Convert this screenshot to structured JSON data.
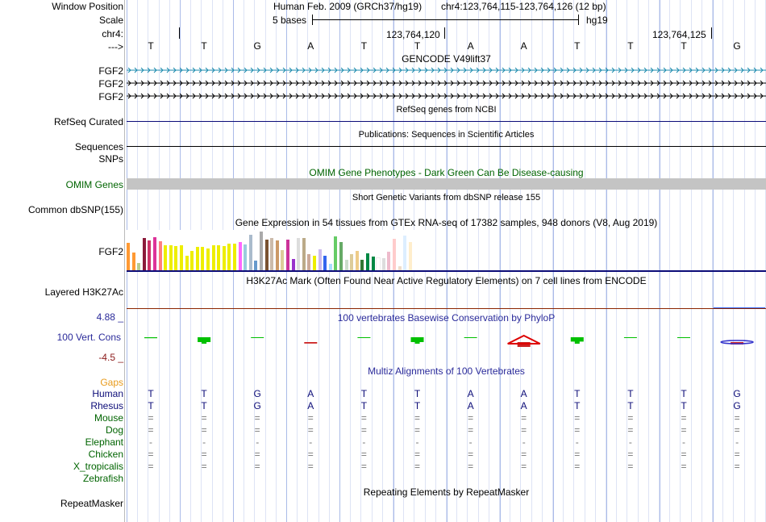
{
  "header": {
    "window_position_label": "Window Position",
    "scale_label": "Scale",
    "chrom_label": "chr4:",
    "arrow_label": "--->",
    "assembly_text": "Human Feb. 2009 (GRCh37/hg19)",
    "position_text": "chr4:123,764,115-123,764,126 (12 bp)",
    "scale_text": "5 bases",
    "db_text": "hg19",
    "coord1": "123,764,120",
    "coord2": "123,764,125"
  },
  "bases": [
    "T",
    "T",
    "G",
    "A",
    "T",
    "T",
    "A",
    "A",
    "T",
    "T",
    "T",
    "G"
  ],
  "tracks": {
    "gencode": {
      "title": "GENCODE V49lift37",
      "genes": [
        "FGF2",
        "FGF2",
        "FGF2"
      ],
      "colors": [
        "#1a8aad",
        "#000000",
        "#000000"
      ]
    },
    "refseq": {
      "title": "RefSeq genes from NCBI",
      "label": "RefSeq Curated",
      "color": "#0c0c78"
    },
    "publications": {
      "title": "Publications: Sequences in Scientific Articles",
      "label1": "Sequences",
      "label2": "SNPs"
    },
    "omim": {
      "title": "OMIM Gene Phenotypes - Dark Green Can Be Disease-causing",
      "label": "OMIM Genes",
      "color": "#006400"
    },
    "dbsnp": {
      "title": "Short Genetic Variants from dbSNP release 155",
      "label": "Common dbSNP(155)"
    },
    "gtex": {
      "title": "Gene Expression in 54 tissues from GTEx RNA-seq of 17382 samples, 948 donors (V8, Aug 2019)",
      "label": "FGF2",
      "values": [
        34,
        22,
        9,
        40,
        37,
        41,
        36,
        31,
        31,
        30,
        31,
        18,
        24,
        29,
        29,
        27,
        31,
        31,
        30,
        33,
        33,
        35,
        32,
        44,
        12,
        48,
        38,
        40,
        37,
        25,
        38,
        14,
        40,
        40,
        20,
        18,
        26,
        18,
        8,
        42,
        35,
        13,
        20,
        24,
        13,
        21,
        17,
        15,
        15,
        23,
        39,
        5,
        43,
        35
      ],
      "colors": [
        "#ff9933",
        "#ff9933",
        "#b9cc8f",
        "#8b1a3a",
        "#cc3366",
        "#dd3399",
        "#ff8080",
        "#eeee00",
        "#eeee00",
        "#eeee00",
        "#eeee00",
        "#eeee00",
        "#eeee00",
        "#eeee00",
        "#eeee00",
        "#eeee00",
        "#eeee00",
        "#eeee00",
        "#eeee00",
        "#eeee00",
        "#eeee00",
        "#ff66ff",
        "#99ccdd",
        "#aabbcc",
        "#6699cc",
        "#aaaaaa",
        "#7a5230",
        "#ccbbaa",
        "#cc9966",
        "#ddcc99",
        "#cc3399",
        "#9933cc",
        "#dddddd",
        "#bbaa88",
        "#ccaa99",
        "#eeee00",
        "#ccbbee",
        "#3366ee",
        "#aaddff",
        "#66cc66",
        "#66aa66",
        "#ccddcc",
        "#ddcc99",
        "#eecc88",
        "#337733",
        "#008844",
        "#008844",
        "#ffffff",
        "#dddddd",
        "#eebbcc",
        "#ffcccc",
        "#eeddcc",
        "#ddeeff",
        "#ffeecc"
      ]
    },
    "h3k27ac": {
      "title": "H3K27Ac Mark (Often Found Near Active Regulatory Elements) on 7 cell lines from ENCODE",
      "label": "Layered H3K27Ac"
    },
    "phylop": {
      "title": "100 vertebrates Basewise Conservation by PhyloP",
      "label": "100 Vert. Cons",
      "max_label": "4.88 _",
      "min_label": "-4.5 _",
      "values": [
        0.2,
        1.2,
        0,
        -0.3,
        0.1,
        1.0,
        0,
        -1.8,
        0.9,
        0.1,
        0.1,
        -0.5
      ]
    },
    "multiz": {
      "title": "Multiz Alignments of 100 Vertebrates",
      "gaps_label": "Gaps",
      "species": [
        {
          "name": "Human",
          "row": "TTGATTAATTTG",
          "color": "#0c0c78"
        },
        {
          "name": "Rhesus",
          "row": "TTGATTAATTTG",
          "color": "#0c0c78"
        },
        {
          "name": "Mouse",
          "row": "============",
          "color": "#006400"
        },
        {
          "name": "Dog",
          "row": "============",
          "color": "#006400"
        },
        {
          "name": "Elephant",
          "row": "------------",
          "color": "#006400"
        },
        {
          "name": "Chicken",
          "row": "============",
          "color": "#006400"
        },
        {
          "name": "X_tropicalis",
          "row": "============",
          "color": "#006400"
        },
        {
          "name": "Zebrafish",
          "row": "            ",
          "color": "#006400"
        }
      ]
    },
    "repeatmasker": {
      "title": "Repeating Elements by RepeatMasker",
      "label": "RepeatMasker"
    }
  }
}
